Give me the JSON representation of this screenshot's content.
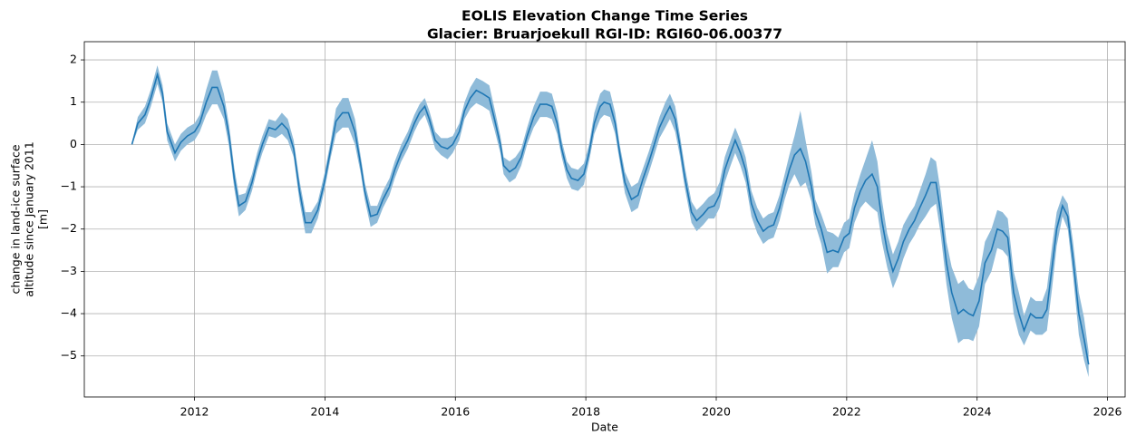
{
  "chart_data": {
    "type": "line",
    "title": "EOLIS Elevation Change Time Series",
    "subtitle": "Glacier: Bruarjoekull RGI-ID: RGI60-06.00377",
    "xlabel": "Date",
    "ylabel": [
      "change in land-ice surface",
      "altitude since January 2011",
      "[m]"
    ],
    "x": [
      2011.04,
      2011.13,
      2011.24,
      2011.33,
      2011.43,
      2011.51,
      2011.58,
      2011.7,
      2011.79,
      2011.89,
      2012.0,
      2012.08,
      2012.18,
      2012.27,
      2012.35,
      2012.45,
      2012.53,
      2012.61,
      2012.68,
      2012.78,
      2012.88,
      2012.96,
      2013.04,
      2013.14,
      2013.24,
      2013.34,
      2013.43,
      2013.52,
      2013.61,
      2013.7,
      2013.79,
      2013.89,
      2013.99,
      2014.09,
      2014.17,
      2014.27,
      2014.36,
      2014.46,
      2014.55,
      2014.61,
      2014.7,
      2014.8,
      2014.89,
      2014.99,
      2015.07,
      2015.17,
      2015.27,
      2015.37,
      2015.45,
      2015.53,
      2015.6,
      2015.69,
      2015.78,
      2015.88,
      2015.96,
      2016.06,
      2016.14,
      2016.23,
      2016.32,
      2016.42,
      2016.52,
      2016.6,
      2016.69,
      2016.74,
      2016.83,
      2016.92,
      2017.01,
      2017.1,
      2017.2,
      2017.3,
      2017.4,
      2017.48,
      2017.56,
      2017.63,
      2017.71,
      2017.78,
      2017.88,
      2017.97,
      2018.05,
      2018.13,
      2018.22,
      2018.28,
      2018.37,
      2018.45,
      2018.52,
      2018.6,
      2018.7,
      2018.8,
      2018.88,
      2018.97,
      2019.05,
      2019.13,
      2019.22,
      2019.29,
      2019.37,
      2019.44,
      2019.52,
      2019.62,
      2019.7,
      2019.8,
      2019.88,
      2019.97,
      2020.05,
      2020.13,
      2020.22,
      2020.29,
      2020.37,
      2020.45,
      2020.54,
      2020.63,
      2020.72,
      2020.8,
      2020.88,
      2020.97,
      2021.05,
      2021.12,
      2021.2,
      2021.29,
      2021.37,
      2021.46,
      2021.52,
      2021.61,
      2021.7,
      2021.79,
      2021.87,
      2021.96,
      2022.04,
      2022.12,
      2022.21,
      2022.29,
      2022.39,
      2022.47,
      2022.54,
      2022.62,
      2022.71,
      2022.79,
      2022.87,
      2022.96,
      2023.04,
      2023.12,
      2023.21,
      2023.29,
      2023.37,
      2023.44,
      2023.53,
      2023.61,
      2023.71,
      2023.79,
      2023.87,
      2023.94,
      2024.03,
      2024.12,
      2024.22,
      2024.31,
      2024.39,
      2024.47,
      2024.56,
      2024.64,
      2024.72,
      2024.82,
      2024.9,
      2025.0,
      2025.07,
      2025.15,
      2025.22,
      2025.31,
      2025.39,
      2025.47,
      2025.56,
      2025.64,
      2025.71
    ],
    "series": [
      {
        "color": "#1f77b4",
        "band_color": "#8fbbd9",
        "values": [
          0,
          0.5,
          0.7,
          1.1,
          1.65,
          1.2,
          0.3,
          -0.2,
          0.05,
          0.2,
          0.3,
          0.5,
          1.0,
          1.35,
          1.35,
          0.9,
          0.2,
          -0.8,
          -1.45,
          -1.35,
          -0.9,
          -0.4,
          0.0,
          0.4,
          0.35,
          0.5,
          0.35,
          -0.1,
          -1.1,
          -1.85,
          -1.85,
          -1.55,
          -0.9,
          -0.1,
          0.55,
          0.75,
          0.75,
          0.3,
          -0.5,
          -1.1,
          -1.7,
          -1.65,
          -1.3,
          -1.0,
          -0.6,
          -0.2,
          0.1,
          0.5,
          0.75,
          0.9,
          0.6,
          0.1,
          -0.05,
          -0.1,
          0.0,
          0.3,
          0.8,
          1.1,
          1.28,
          1.2,
          1.1,
          0.6,
          0.0,
          -0.5,
          -0.65,
          -0.55,
          -0.3,
          0.2,
          0.65,
          0.95,
          0.95,
          0.9,
          0.5,
          -0.1,
          -0.6,
          -0.8,
          -0.85,
          -0.7,
          -0.2,
          0.5,
          0.9,
          1.0,
          0.95,
          0.5,
          -0.2,
          -0.9,
          -1.3,
          -1.2,
          -0.8,
          -0.4,
          0.0,
          0.4,
          0.7,
          0.9,
          0.6,
          0.0,
          -0.8,
          -1.6,
          -1.8,
          -1.65,
          -1.5,
          -1.45,
          -1.2,
          -0.6,
          -0.2,
          0.1,
          -0.2,
          -0.6,
          -1.4,
          -1.8,
          -2.05,
          -1.95,
          -1.9,
          -1.5,
          -1.0,
          -0.6,
          -0.25,
          -0.1,
          -0.4,
          -1.0,
          -1.6,
          -2.0,
          -2.55,
          -2.5,
          -2.55,
          -2.2,
          -2.1,
          -1.5,
          -1.1,
          -0.85,
          -0.7,
          -1.0,
          -1.8,
          -2.5,
          -3.0,
          -2.7,
          -2.3,
          -2.0,
          -1.8,
          -1.5,
          -1.2,
          -0.9,
          -0.9,
          -1.6,
          -2.8,
          -3.5,
          -4.0,
          -3.9,
          -4.0,
          -4.05,
          -3.7,
          -2.8,
          -2.5,
          -2.0,
          -2.05,
          -2.2,
          -3.5,
          -4.0,
          -4.4,
          -4.0,
          -4.1,
          -4.1,
          -3.9,
          -2.9,
          -2.0,
          -1.45,
          -1.7,
          -2.7,
          -4.0,
          -4.6,
          -5.2
        ],
        "errors": [
          0.02,
          0.15,
          0.2,
          0.2,
          0.22,
          0.2,
          0.2,
          0.2,
          0.2,
          0.2,
          0.2,
          0.2,
          0.3,
          0.4,
          0.4,
          0.3,
          0.25,
          0.25,
          0.25,
          0.2,
          0.2,
          0.2,
          0.2,
          0.2,
          0.2,
          0.25,
          0.25,
          0.2,
          0.25,
          0.25,
          0.25,
          0.2,
          0.2,
          0.2,
          0.3,
          0.35,
          0.35,
          0.3,
          0.2,
          0.2,
          0.25,
          0.2,
          0.2,
          0.2,
          0.2,
          0.2,
          0.2,
          0.2,
          0.2,
          0.2,
          0.2,
          0.2,
          0.2,
          0.25,
          0.2,
          0.2,
          0.2,
          0.25,
          0.3,
          0.3,
          0.3,
          0.25,
          0.2,
          0.2,
          0.25,
          0.25,
          0.2,
          0.2,
          0.25,
          0.3,
          0.3,
          0.3,
          0.25,
          0.2,
          0.2,
          0.25,
          0.25,
          0.25,
          0.2,
          0.25,
          0.3,
          0.3,
          0.3,
          0.25,
          0.2,
          0.25,
          0.3,
          0.3,
          0.25,
          0.25,
          0.25,
          0.25,
          0.3,
          0.3,
          0.3,
          0.25,
          0.25,
          0.25,
          0.25,
          0.25,
          0.25,
          0.3,
          0.3,
          0.3,
          0.3,
          0.3,
          0.3,
          0.3,
          0.3,
          0.3,
          0.3,
          0.3,
          0.3,
          0.3,
          0.3,
          0.35,
          0.45,
          0.9,
          0.5,
          0.35,
          0.3,
          0.35,
          0.5,
          0.4,
          0.35,
          0.35,
          0.35,
          0.35,
          0.4,
          0.5,
          0.8,
          0.6,
          0.5,
          0.4,
          0.4,
          0.4,
          0.4,
          0.35,
          0.35,
          0.4,
          0.5,
          0.6,
          0.5,
          0.5,
          0.5,
          0.6,
          0.7,
          0.7,
          0.6,
          0.6,
          0.6,
          0.5,
          0.5,
          0.45,
          0.45,
          0.45,
          0.5,
          0.5,
          0.35,
          0.4,
          0.4,
          0.4,
          0.5,
          0.5,
          0.4,
          0.25,
          0.3,
          0.4,
          0.5,
          0.5,
          0.3
        ]
      }
    ],
    "xlim": [
      2010.31,
      2026.27
    ],
    "xticks": [
      2012,
      2014,
      2016,
      2018,
      2020,
      2022,
      2024,
      2026
    ],
    "ylim": [
      -5.97,
      2.43
    ],
    "yticks": [
      {
        "value": -5,
        "label": "−5"
      },
      {
        "value": -4,
        "label": "−4"
      },
      {
        "value": -3,
        "label": "−3"
      },
      {
        "value": -2,
        "label": "−2"
      },
      {
        "value": -1,
        "label": "−1"
      },
      0,
      1,
      2
    ],
    "grid": true
  }
}
